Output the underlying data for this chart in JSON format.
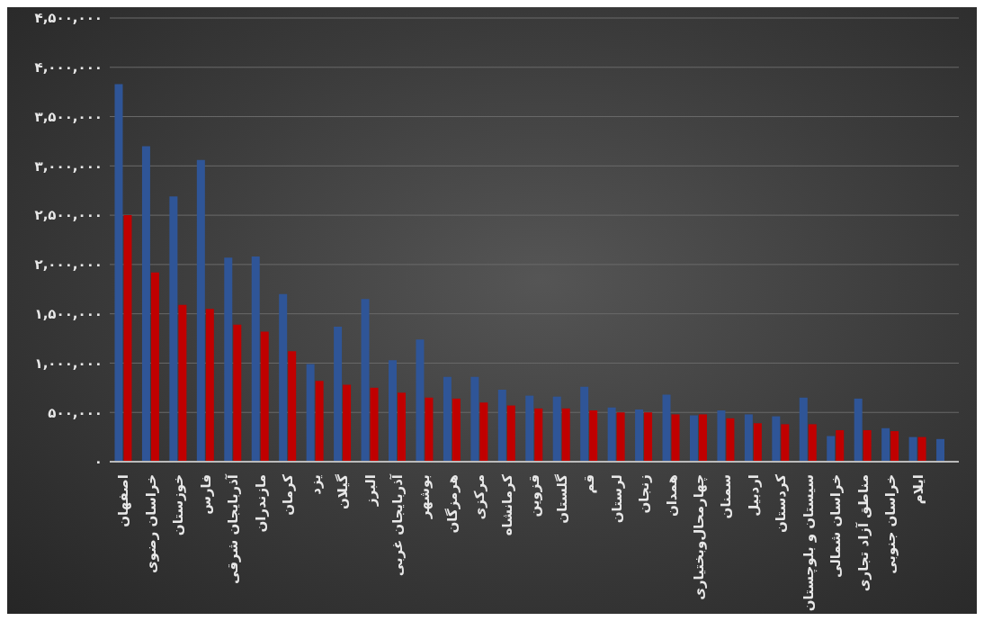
{
  "chart_data": {
    "type": "bar",
    "categories": [
      "اصفهان",
      "خراسان رضوی",
      "خوزستان",
      "فارس",
      "آذربایجان شرقی",
      "مازندران",
      "کرمان",
      "یزد",
      "گیلان",
      "البرز",
      "آذربایجان غربی",
      "بوشهر",
      "هرمزگان",
      "مرکزی",
      "کرمانشاه",
      "قزوین",
      "گلستان",
      "قم",
      "لرستان",
      "زنجان",
      "همدان",
      "چهارمحال‌وبختیاری",
      "سمنان",
      "اردبیل",
      "کردستان",
      "سیستان و بلوچستان",
      "خراسان شمالی",
      "مناطق آزاد تجاری",
      "خراسان جنوبی",
      "ایلام",
      null
    ],
    "series": [
      {
        "color": "#2f5597",
        "values": [
          3830000,
          3200000,
          2690000,
          3060000,
          2070000,
          2080000,
          1700000,
          990000,
          1370000,
          1650000,
          1030000,
          1240000,
          860000,
          860000,
          730000,
          670000,
          660000,
          760000,
          550000,
          530000,
          680000,
          470000,
          520000,
          480000,
          460000,
          650000,
          260000,
          640000,
          340000,
          250000,
          230000
        ]
      },
      {
        "color": "#c00000",
        "values": [
          2500000,
          1920000,
          1590000,
          1550000,
          1390000,
          1320000,
          1120000,
          820000,
          780000,
          750000,
          700000,
          650000,
          640000,
          600000,
          570000,
          540000,
          540000,
          520000,
          500000,
          500000,
          480000,
          480000,
          440000,
          390000,
          380000,
          380000,
          320000,
          320000,
          310000,
          250000,
          null
        ]
      }
    ],
    "ylim": [
      0,
      4500000
    ],
    "yticks": [
      {
        "value": 0,
        "label": "۰"
      },
      {
        "value": 500000,
        "label": "۵۰۰,۰۰۰"
      },
      {
        "value": 1000000,
        "label": "۱,۰۰۰,۰۰۰"
      },
      {
        "value": 1500000,
        "label": "۱,۵۰۰,۰۰۰"
      },
      {
        "value": 2000000,
        "label": "۲,۰۰۰,۰۰۰"
      },
      {
        "value": 2500000,
        "label": "۲,۵۰۰,۰۰۰"
      },
      {
        "value": 3000000,
        "label": "۳,۰۰۰,۰۰۰"
      },
      {
        "value": 3500000,
        "label": "۳,۵۰۰,۰۰۰"
      },
      {
        "value": 4000000,
        "label": "۴,۰۰۰,۰۰۰"
      },
      {
        "value": 4500000,
        "label": "۴,۵۰۰,۰۰۰"
      }
    ],
    "grid": "y"
  }
}
